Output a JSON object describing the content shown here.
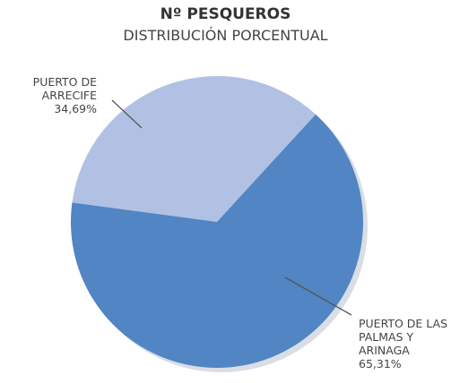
{
  "chart_data": {
    "type": "pie",
    "title": "Nº PESQUEROS",
    "subtitle": "DISTRIBUCIÓN PORCENTUAL",
    "categories": [
      "PUERTO DE ARRECIFE",
      "PUERTO DE LAS PALMAS Y ARINAGA"
    ],
    "values": [
      34.69,
      65.31
    ],
    "value_labels": [
      "34,69%",
      "65,31%"
    ],
    "colors": [
      "#b1c1e3",
      "#5185c4"
    ]
  }
}
